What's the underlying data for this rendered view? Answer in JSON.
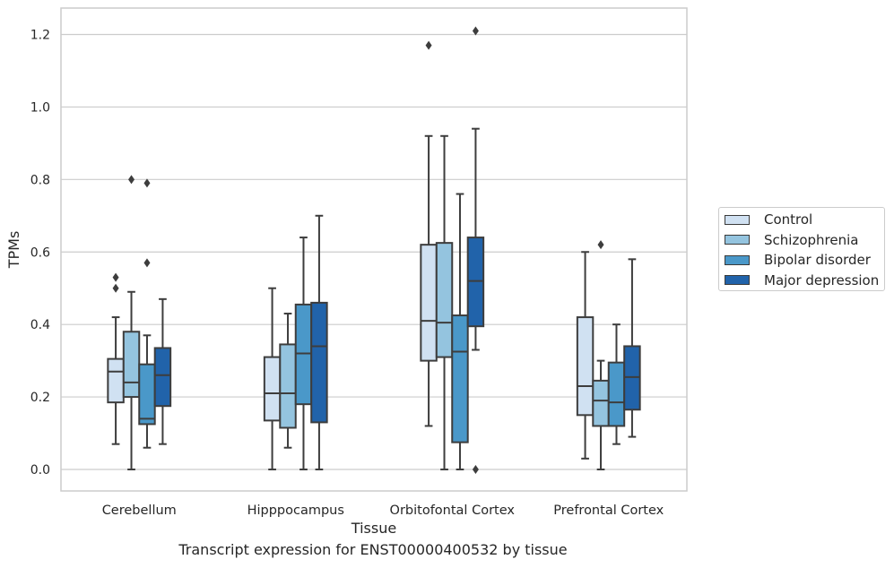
{
  "chart_data": {
    "type": "box",
    "title": "",
    "caption": "Transcript expression for ENST00000400532 by tissue",
    "xlabel": "Tissue",
    "ylabel": "TPMs",
    "ylim": [
      -0.06,
      1.27
    ],
    "yticks": [
      "0.0",
      "0.2",
      "0.4",
      "0.6",
      "0.8",
      "1.0",
      "1.2"
    ],
    "ytick_values": [
      0.0,
      0.2,
      0.4,
      0.6,
      0.8,
      1.0,
      1.2
    ],
    "grid": true,
    "legend_position": "right",
    "categories": [
      "Cerebellum",
      "Hipppocampus",
      "Orbitofontal Cortex",
      "Prefrontal Cortex"
    ],
    "series": [
      {
        "name": "Control",
        "color": "#d0e1f2",
        "boxes": [
          {
            "whislo": 0.07,
            "q1": 0.185,
            "med": 0.27,
            "q3": 0.305,
            "whishi": 0.42,
            "fliers": [
              0.5,
              0.53
            ]
          },
          {
            "whislo": 0.0,
            "q1": 0.135,
            "med": 0.21,
            "q3": 0.31,
            "whishi": 0.5,
            "fliers": []
          },
          {
            "whislo": 0.12,
            "q1": 0.3,
            "med": 0.41,
            "q3": 0.62,
            "whishi": 0.92,
            "fliers": [
              1.17
            ]
          },
          {
            "whislo": 0.03,
            "q1": 0.15,
            "med": 0.23,
            "q3": 0.42,
            "whishi": 0.6,
            "fliers": []
          }
        ]
      },
      {
        "name": "Schizophrenia",
        "color": "#94c4df",
        "boxes": [
          {
            "whislo": 0.0,
            "q1": 0.2,
            "med": 0.24,
            "q3": 0.38,
            "whishi": 0.49,
            "fliers": [
              0.8
            ]
          },
          {
            "whislo": 0.06,
            "q1": 0.115,
            "med": 0.21,
            "q3": 0.345,
            "whishi": 0.43,
            "fliers": []
          },
          {
            "whislo": 0.0,
            "q1": 0.31,
            "med": 0.405,
            "q3": 0.625,
            "whishi": 0.92,
            "fliers": []
          },
          {
            "whislo": 0.0,
            "q1": 0.12,
            "med": 0.19,
            "q3": 0.245,
            "whishi": 0.3,
            "fliers": [
              0.62
            ]
          }
        ]
      },
      {
        "name": "Bipolar disorder",
        "color": "#4a98c9",
        "boxes": [
          {
            "whislo": 0.06,
            "q1": 0.125,
            "med": 0.14,
            "q3": 0.29,
            "whishi": 0.37,
            "fliers": [
              0.57,
              0.79
            ]
          },
          {
            "whislo": 0.0,
            "q1": 0.18,
            "med": 0.32,
            "q3": 0.455,
            "whishi": 0.64,
            "fliers": []
          },
          {
            "whislo": 0.0,
            "q1": 0.075,
            "med": 0.325,
            "q3": 0.425,
            "whishi": 0.76,
            "fliers": []
          },
          {
            "whislo": 0.07,
            "q1": 0.12,
            "med": 0.185,
            "q3": 0.295,
            "whishi": 0.4,
            "fliers": []
          }
        ]
      },
      {
        "name": "Major depression",
        "color": "#2163aa",
        "boxes": [
          {
            "whislo": 0.07,
            "q1": 0.175,
            "med": 0.26,
            "q3": 0.335,
            "whishi": 0.47,
            "fliers": []
          },
          {
            "whislo": 0.0,
            "q1": 0.13,
            "med": 0.34,
            "q3": 0.46,
            "whishi": 0.7,
            "fliers": []
          },
          {
            "whislo": 0.33,
            "q1": 0.395,
            "med": 0.52,
            "q3": 0.64,
            "whishi": 0.94,
            "fliers": [
              0.0,
              1.21
            ]
          },
          {
            "whislo": 0.09,
            "q1": 0.165,
            "med": 0.255,
            "q3": 0.34,
            "whishi": 0.58,
            "fliers": []
          }
        ]
      }
    ]
  }
}
